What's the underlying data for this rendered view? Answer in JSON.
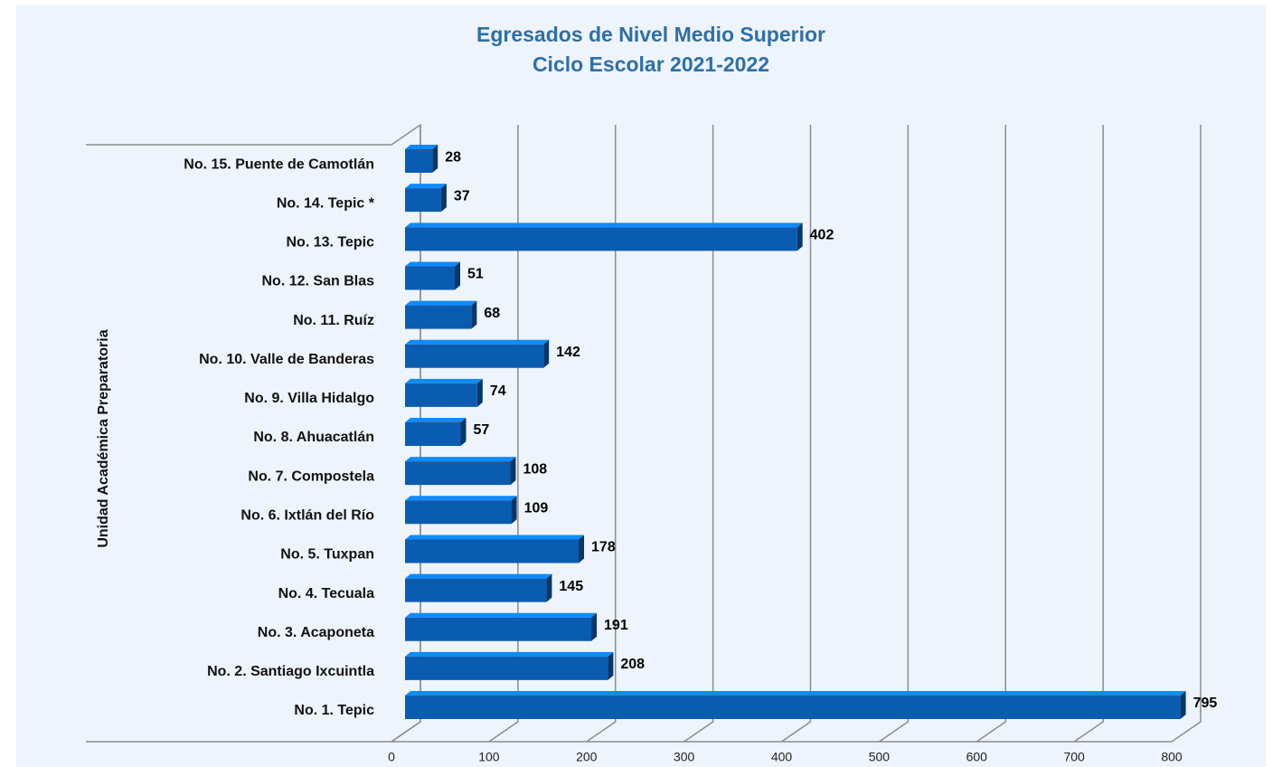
{
  "chart_data": {
    "type": "bar",
    "orientation": "horizontal",
    "title": "Egresados de Nivel Medio Superior",
    "subtitle": "Ciclo Escolar 2021-2022",
    "y_axis_label": "Unidad Académica Preparatoria",
    "categories": [
      "No. 1. Tepic",
      "No. 2. Santiago Ixcuintla",
      "No. 3. Acaponeta",
      "No. 4. Tecuala",
      "No. 5. Tuxpan",
      "No. 6. Ixtlán del Río",
      "No. 7. Compostela",
      "No. 8. Ahuacatlán",
      "No. 9. Villa Hidalgo",
      "No. 10. Valle de Banderas",
      "No. 11. Ruíz",
      "No. 12. San Blas",
      "No. 13. Tepic",
      "No. 14. Tepic *",
      "No. 15. Puente de Camotlán"
    ],
    "values": [
      795,
      208,
      191,
      145,
      178,
      109,
      108,
      57,
      74,
      142,
      68,
      51,
      402,
      37,
      28
    ],
    "color": "#0a5cb0",
    "xlim": [
      0,
      800
    ],
    "xticks": [
      0,
      100,
      200,
      300,
      400,
      500,
      600,
      700,
      800
    ],
    "grid": true
  }
}
